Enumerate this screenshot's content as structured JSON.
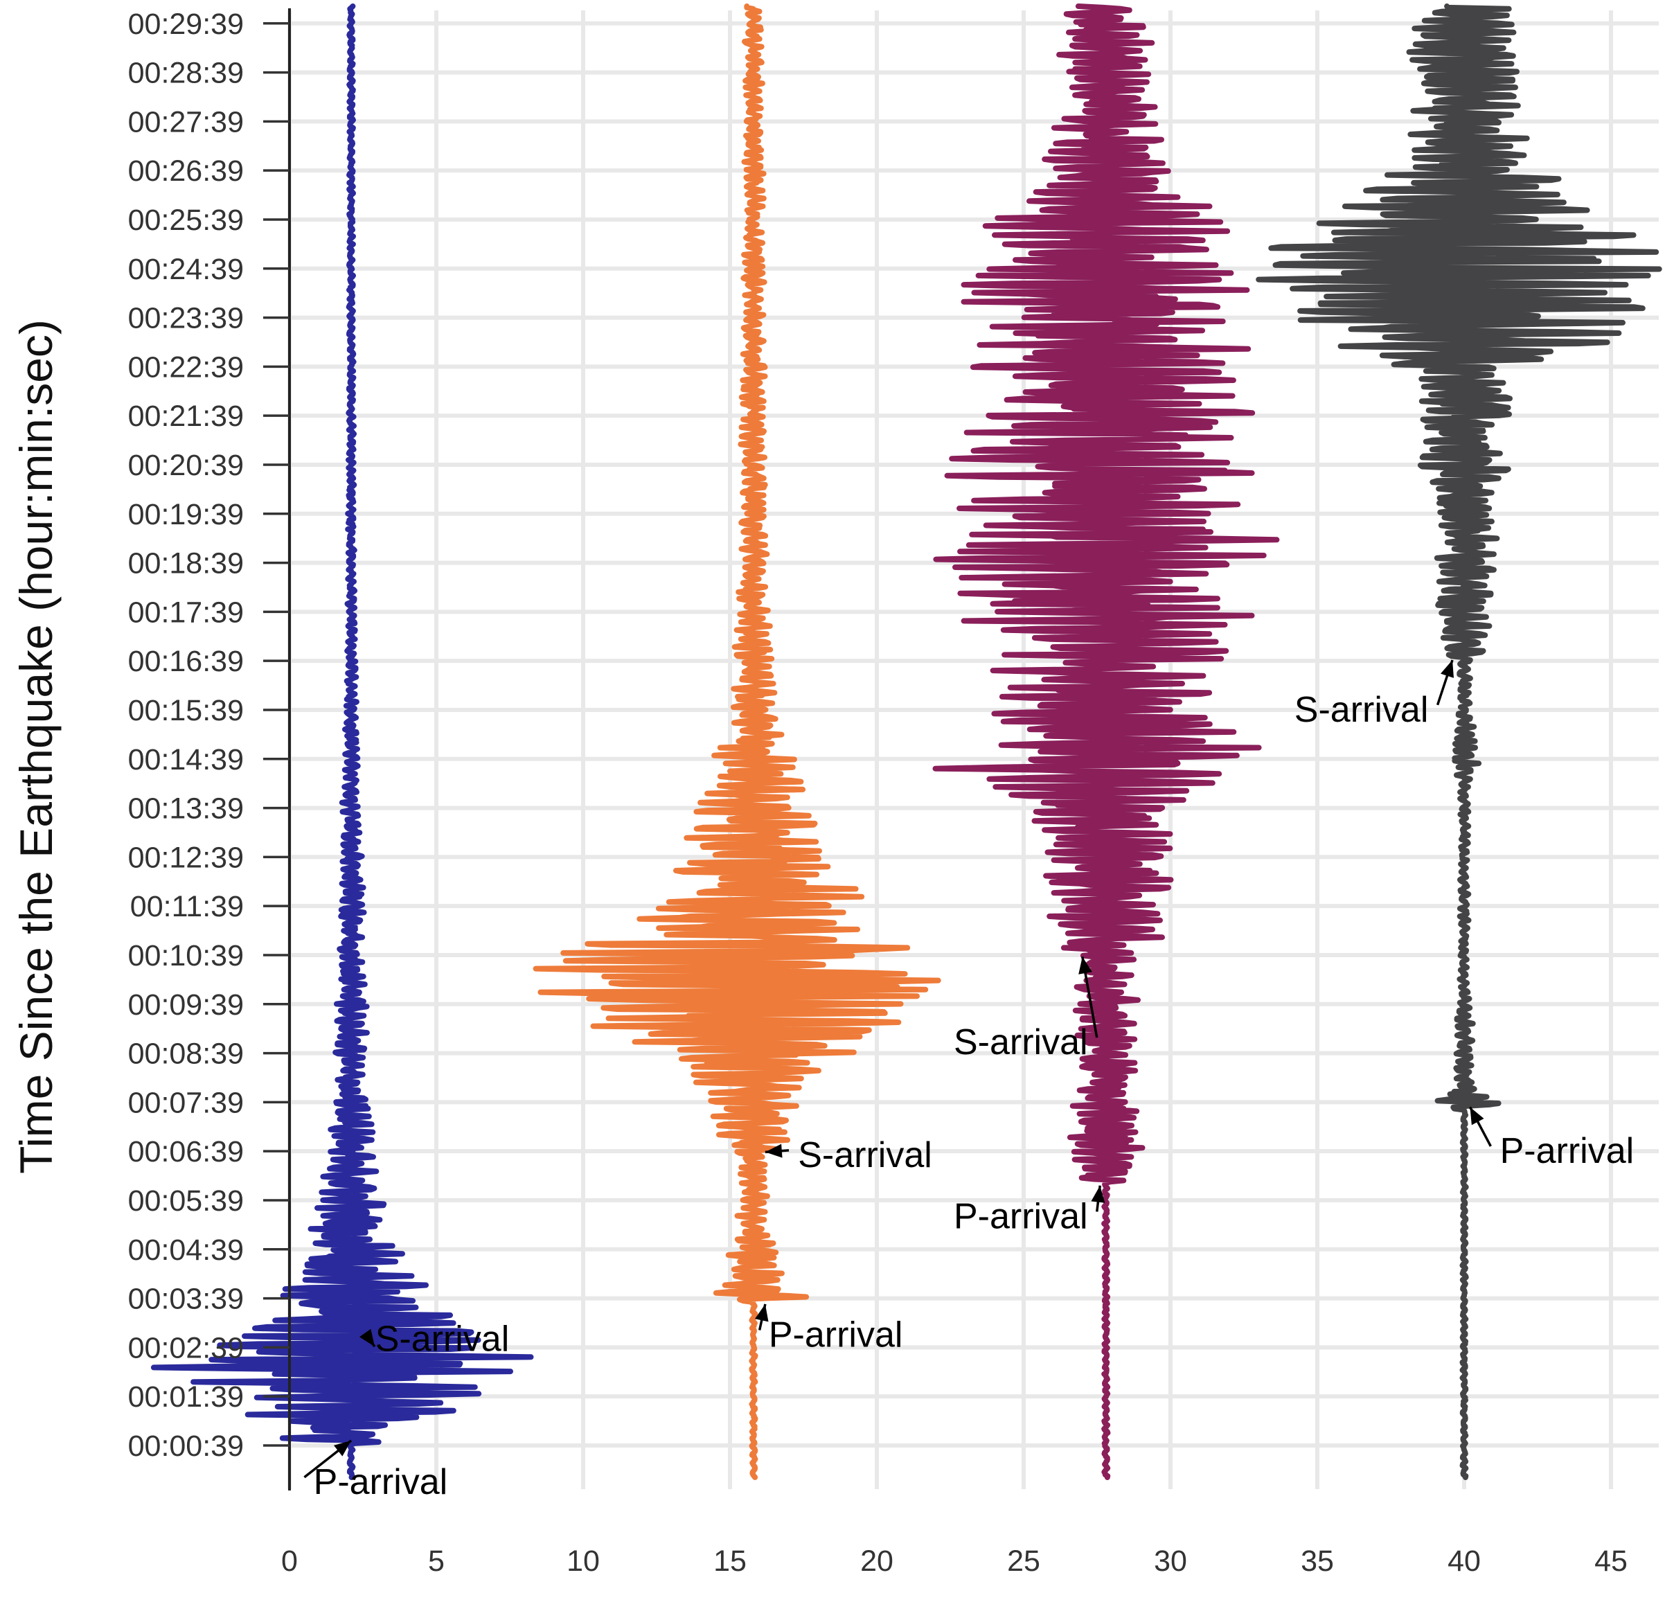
{
  "chart_data": {
    "type": "line",
    "title": "",
    "xlabel": "",
    "ylabel": "Time Since the Earthquake (hour:min:sec)",
    "xlim": [
      0,
      46.5
    ],
    "ylim_seconds": [
      0,
      1800
    ],
    "grid": true,
    "x_ticks": [
      "0",
      "5",
      "10",
      "15",
      "20",
      "25",
      "30",
      "35",
      "40",
      "45"
    ],
    "x_tick_values": [
      0,
      5,
      10,
      15,
      20,
      25,
      30,
      35,
      40,
      45
    ],
    "y_ticks": [
      "00:00:39",
      "00:01:39",
      "00:02:39",
      "00:03:39",
      "00:04:39",
      "00:05:39",
      "00:06:39",
      "00:07:39",
      "00:08:39",
      "00:09:39",
      "00:10:39",
      "00:11:39",
      "00:12:39",
      "00:13:39",
      "00:14:39",
      "00:15:39",
      "00:16:39",
      "00:17:39",
      "00:18:39",
      "00:19:39",
      "00:20:39",
      "00:21:39",
      "00:22:39",
      "00:23:39",
      "00:24:39",
      "00:25:39",
      "00:26:39",
      "00:27:39",
      "00:28:39",
      "00:29:39"
    ],
    "y_tick_seconds": [
      39,
      99,
      159,
      219,
      279,
      339,
      399,
      459,
      519,
      579,
      639,
      699,
      759,
      819,
      879,
      939,
      999,
      1059,
      1119,
      1179,
      1239,
      1299,
      1359,
      1419,
      1479,
      1539,
      1599,
      1659,
      1719,
      1779
    ],
    "series": [
      {
        "color": "#2a2a9c",
        "baseline_x": 2.1,
        "p_arrival_s": 45,
        "s_arrival_s": 170,
        "envelope": [
          [
            0,
            0.05
          ],
          [
            40,
            0.05
          ],
          [
            45,
            1.8
          ],
          [
            100,
            4.0
          ],
          [
            140,
            6.0
          ],
          [
            170,
            3.8
          ],
          [
            220,
            2.2
          ],
          [
            280,
            1.4
          ],
          [
            350,
            0.8
          ],
          [
            450,
            0.55
          ],
          [
            600,
            0.4
          ],
          [
            800,
            0.28
          ],
          [
            1000,
            0.12
          ],
          [
            1300,
            0.07
          ],
          [
            1800,
            0.05
          ]
        ]
      },
      {
        "color": "#ee7b3a",
        "baseline_x": 15.8,
        "p_arrival_s": 218,
        "s_arrival_s": 398,
        "envelope": [
          [
            0,
            0.05
          ],
          [
            215,
            0.05
          ],
          [
            220,
            1.8
          ],
          [
            245,
            0.9
          ],
          [
            300,
            0.45
          ],
          [
            395,
            0.4
          ],
          [
            405,
            1.0
          ],
          [
            480,
            1.4
          ],
          [
            560,
            4.6
          ],
          [
            620,
            6.5
          ],
          [
            690,
            3.0
          ],
          [
            760,
            2.5
          ],
          [
            850,
            1.3
          ],
          [
            950,
            0.6
          ],
          [
            1100,
            0.4
          ],
          [
            1400,
            0.3
          ],
          [
            1800,
            0.25
          ]
        ]
      },
      {
        "color": "#8a1f5a",
        "baseline_x": 27.8,
        "p_arrival_s": 362,
        "s_arrival_s": 640,
        "envelope": [
          [
            0,
            0.05
          ],
          [
            360,
            0.05
          ],
          [
            365,
            1.2
          ],
          [
            400,
            1.1
          ],
          [
            500,
            0.8
          ],
          [
            640,
            0.9
          ],
          [
            650,
            1.5
          ],
          [
            700,
            1.7
          ],
          [
            820,
            2.0
          ],
          [
            880,
            5.3
          ],
          [
            920,
            3.2
          ],
          [
            1000,
            3.2
          ],
          [
            1100,
            4.5
          ],
          [
            1240,
            4.5
          ],
          [
            1350,
            3.7
          ],
          [
            1470,
            4.0
          ],
          [
            1560,
            2.8
          ],
          [
            1650,
            1.4
          ],
          [
            1800,
            1.2
          ]
        ]
      },
      {
        "color": "#444446",
        "baseline_x": 40.0,
        "p_arrival_s": 455,
        "s_arrival_s": 1000,
        "envelope": [
          [
            0,
            0.05
          ],
          [
            450,
            0.05
          ],
          [
            455,
            1.3
          ],
          [
            475,
            0.3
          ],
          [
            560,
            0.25
          ],
          [
            600,
            0.12
          ],
          [
            850,
            0.12
          ],
          [
            880,
            0.5
          ],
          [
            940,
            0.15
          ],
          [
            1000,
            0.2
          ],
          [
            1010,
            0.7
          ],
          [
            1150,
            0.9
          ],
          [
            1250,
            1.4
          ],
          [
            1350,
            1.4
          ],
          [
            1400,
            4.5
          ],
          [
            1480,
            6.2
          ],
          [
            1560,
            3.3
          ],
          [
            1650,
            1.6
          ],
          [
            1800,
            1.5
          ]
        ]
      }
    ],
    "annotations": [
      {
        "text": "P-arrival",
        "x": 3.1,
        "t": -5,
        "arrow_to_x": 2.1,
        "arrow_to_t": 45
      },
      {
        "text": "S-arrival",
        "x": 5.2,
        "t": 170,
        "arrow_to_x": 2.9,
        "arrow_to_t": 160
      },
      {
        "text": "P-arrival",
        "x": 18.6,
        "t": 175,
        "arrow_to_x": 16.2,
        "arrow_to_t": 212
      },
      {
        "text": "S-arrival",
        "x": 19.6,
        "t": 395,
        "arrow_to_x": 16.2,
        "arrow_to_t": 398
      },
      {
        "text": "P-arrival",
        "x": 24.9,
        "t": 320,
        "arrow_to_x": 27.6,
        "arrow_to_t": 357
      },
      {
        "text": "S-arrival",
        "x": 24.9,
        "t": 533,
        "arrow_to_x": 27.0,
        "arrow_to_t": 637
      },
      {
        "text": "P-arrival",
        "x": 43.5,
        "t": 400,
        "arrow_to_x": 40.2,
        "arrow_to_t": 453
      },
      {
        "text": "S-arrival",
        "x": 36.5,
        "t": 940,
        "arrow_to_x": 39.6,
        "arrow_to_t": 1000
      }
    ]
  }
}
